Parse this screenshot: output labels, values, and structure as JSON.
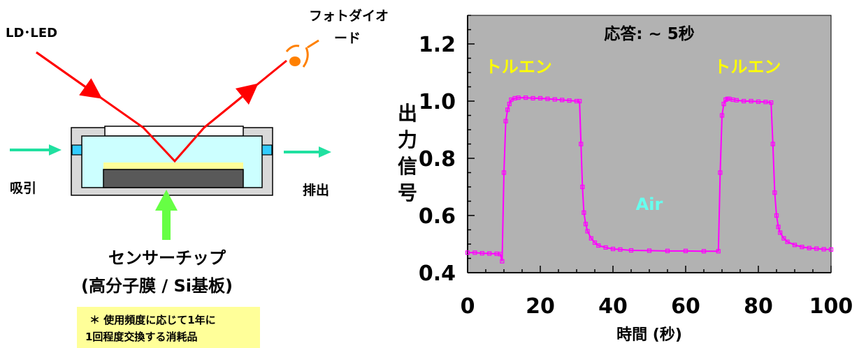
{
  "diagram": {
    "light_source_label": "LD･LED",
    "photodiode_label_line1": "フォトダイオ",
    "photodiode_label_line2": "ード",
    "suction_label": "吸引",
    "exhaust_label": "排出",
    "chip_label_line1": "センサーチップ",
    "chip_label_line2": "(高分子膜 / Si基板)",
    "note_line1": "＊ 使用頻度に応じて1年に",
    "note_line2": "1回程度交換する消耗品",
    "colors": {
      "beam": "#ff0000",
      "flow_arrow": "#20e0a0",
      "chip_arrow": "#66ff44",
      "photodiode": "#ff8000",
      "note_bg": "#ffff99",
      "chamber_outer": "#d9d9d9",
      "chamber_inner": "#ccffff",
      "polymer_film": "#ffff99",
      "substrate": "#595959"
    }
  },
  "chart_data": {
    "type": "line",
    "title": "応答: ~ 5秒",
    "xlabel": "時間 (秒)",
    "ylabel": "出力信号",
    "xlim": [
      0,
      100
    ],
    "ylim": [
      0.4,
      1.3
    ],
    "xticks": [
      0,
      20,
      40,
      60,
      80,
      100
    ],
    "yticks": [
      0.4,
      0.6,
      0.8,
      1.0,
      1.2
    ],
    "grid": false,
    "plot_bg": "#b2b2b2",
    "series_color": "#ff00ff",
    "annotations": [
      {
        "text": "トルエン",
        "x": 14,
        "y": 1.1,
        "color": "#ffff00"
      },
      {
        "text": "トルエン",
        "x": 77,
        "y": 1.1,
        "color": "#ffff00"
      },
      {
        "text": "Air",
        "x": 50,
        "y": 0.62,
        "color": "#66ffee"
      }
    ],
    "series": [
      {
        "x": [
          0,
          2,
          4,
          6,
          8,
          9,
          9.5,
          10,
          10.5,
          11,
          11.5,
          12,
          13,
          14,
          16,
          18,
          20,
          22,
          24,
          26,
          28,
          30,
          30.8,
          31.2,
          31.6,
          32,
          32.5,
          33,
          34,
          35,
          36,
          38,
          40,
          42,
          45,
          50,
          55,
          60,
          65,
          69,
          69.5,
          70,
          70.5,
          71,
          71.5,
          72,
          73,
          74,
          76,
          78,
          80,
          82,
          83.5,
          84,
          84.5,
          85,
          85.5,
          86,
          87,
          88,
          90,
          92,
          94,
          96,
          98,
          100
        ],
        "y": [
          0.47,
          0.47,
          0.468,
          0.467,
          0.466,
          0.465,
          0.44,
          0.75,
          0.93,
          0.97,
          0.99,
          1.005,
          1.01,
          1.012,
          1.012,
          1.01,
          1.01,
          1.008,
          1.006,
          1.004,
          1.002,
          1.0,
          1.0,
          0.85,
          0.7,
          0.61,
          0.57,
          0.545,
          0.52,
          0.505,
          0.495,
          0.488,
          0.483,
          0.481,
          0.478,
          0.477,
          0.476,
          0.476,
          0.475,
          0.475,
          0.75,
          0.95,
          0.99,
          1.005,
          1.008,
          1.008,
          1.005,
          1.003,
          1.0,
          1.0,
          0.998,
          0.997,
          0.995,
          0.85,
          0.68,
          0.6,
          0.56,
          0.54,
          0.52,
          0.508,
          0.497,
          0.49,
          0.486,
          0.484,
          0.482,
          0.481
        ]
      }
    ]
  }
}
